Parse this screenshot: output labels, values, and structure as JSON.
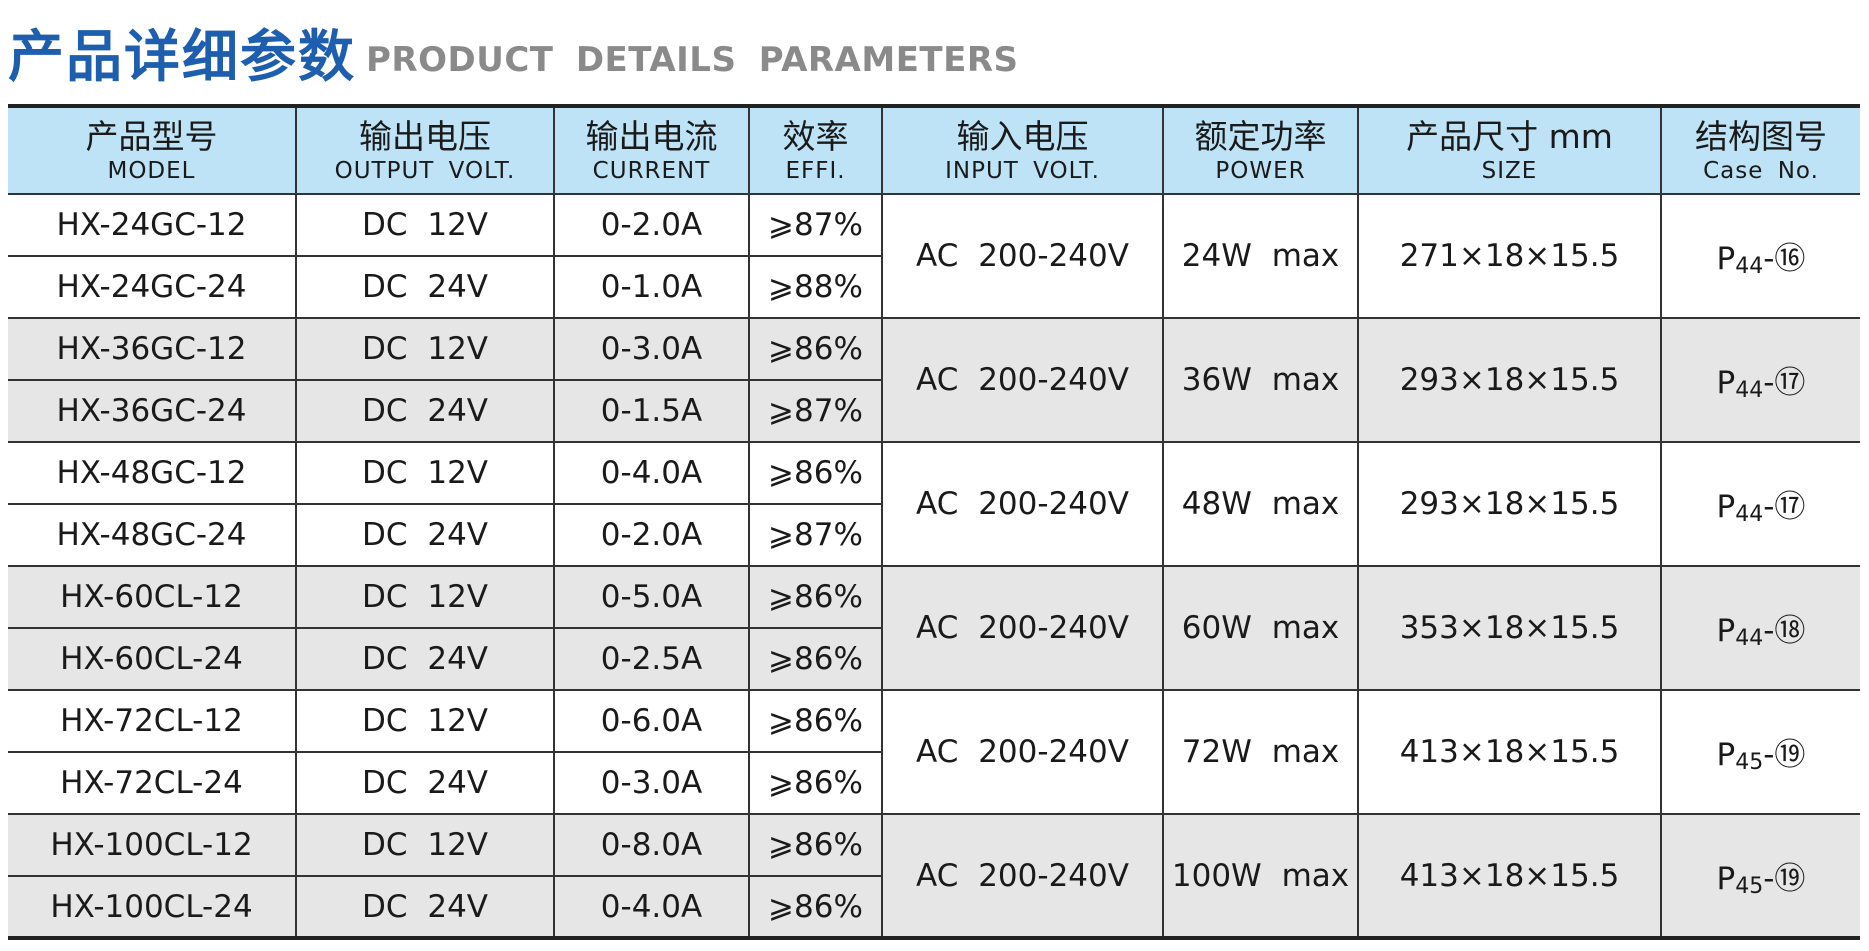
{
  "title": {
    "cn": "产品详细参数",
    "en": "PRODUCT  DETAILS  PARAMETERS"
  },
  "headers": [
    {
      "cn": "产品型号",
      "en": "MODEL"
    },
    {
      "cn": "输出电压",
      "en": "OUTPUT  VOLT."
    },
    {
      "cn": "输出电流",
      "en": "CURRENT"
    },
    {
      "cn": "效率",
      "en": "EFFI."
    },
    {
      "cn": "输入电压",
      "en": "INPUT  VOLT."
    },
    {
      "cn": "额定功率",
      "en": "POWER"
    },
    {
      "cn": "产品尺寸 mm",
      "en": "SIZE"
    },
    {
      "cn": "结构图号",
      "en": "Case  No."
    }
  ],
  "groups": [
    {
      "input": "AC 200-240V",
      "power": "24W max",
      "size": "271×18×15.5",
      "case_p": "P",
      "case_num": "44",
      "case_suffix": "-⑯",
      "rows": [
        {
          "model": "HX-24GC-12",
          "volt": "DC 12V",
          "current": "0-2.0A",
          "effi": "⩾87%"
        },
        {
          "model": "HX-24GC-24",
          "volt": "DC 24V",
          "current": "0-1.0A",
          "effi": "⩾88%"
        }
      ]
    },
    {
      "input": "AC 200-240V",
      "power": "36W max",
      "size": "293×18×15.5",
      "case_p": "P",
      "case_num": "44",
      "case_suffix": "-⑰",
      "rows": [
        {
          "model": "HX-36GC-12",
          "volt": "DC 12V",
          "current": "0-3.0A",
          "effi": "⩾86%"
        },
        {
          "model": "HX-36GC-24",
          "volt": "DC 24V",
          "current": "0-1.5A",
          "effi": "⩾87%"
        }
      ]
    },
    {
      "input": "AC 200-240V",
      "power": "48W max",
      "size": "293×18×15.5",
      "case_p": "P",
      "case_num": "44",
      "case_suffix": "-⑰",
      "rows": [
        {
          "model": "HX-48GC-12",
          "volt": "DC 12V",
          "current": "0-4.0A",
          "effi": "⩾86%"
        },
        {
          "model": "HX-48GC-24",
          "volt": "DC 24V",
          "current": "0-2.0A",
          "effi": "⩾87%"
        }
      ]
    },
    {
      "input": "AC 200-240V",
      "power": "60W max",
      "size": "353×18×15.5",
      "case_p": "P",
      "case_num": "44",
      "case_suffix": "-⑱",
      "rows": [
        {
          "model": "HX-60CL-12",
          "volt": "DC 12V",
          "current": "0-5.0A",
          "effi": "⩾86%"
        },
        {
          "model": "HX-60CL-24",
          "volt": "DC 24V",
          "current": "0-2.5A",
          "effi": "⩾86%"
        }
      ]
    },
    {
      "input": "AC 200-240V",
      "power": "72W max",
      "size": "413×18×15.5",
      "case_p": "P",
      "case_num": "45",
      "case_suffix": "-⑲",
      "rows": [
        {
          "model": "HX-72CL-12",
          "volt": "DC 12V",
          "current": "0-6.0A",
          "effi": "⩾86%"
        },
        {
          "model": "HX-72CL-24",
          "volt": "DC 24V",
          "current": "0-3.0A",
          "effi": "⩾86%"
        }
      ]
    },
    {
      "input": "AC 200-240V",
      "power": "100W max",
      "size": "413×18×15.5",
      "case_p": "P",
      "case_num": "45",
      "case_suffix": "-⑲",
      "rows": [
        {
          "model": "HX-100CL-12",
          "volt": "DC 12V",
          "current": "0-8.0A",
          "effi": "⩾86%"
        },
        {
          "model": "HX-100CL-24",
          "volt": "DC 24V",
          "current": "0-4.0A",
          "effi": "⩾86%"
        }
      ]
    }
  ],
  "colors": {
    "title_blue": "#1d5fae",
    "title_gray": "#8a8a8a",
    "header_bg": "#bfe3f6",
    "shade_bg": "#e6e6e6"
  }
}
